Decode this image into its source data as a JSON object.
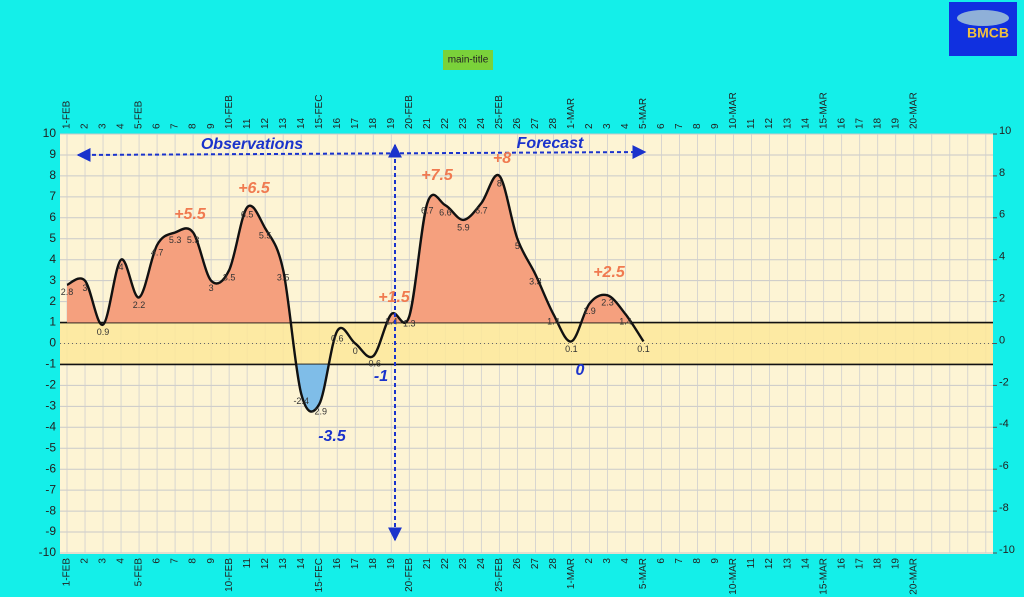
{
  "chart_data": {
    "type": "line",
    "title": "main-title",
    "logo": "BMCB",
    "categories": [
      "1-FEB",
      "2",
      "3",
      "4",
      "5-FEB",
      "6",
      "7",
      "8",
      "9",
      "10-FEB",
      "11",
      "12",
      "13",
      "14",
      "15-FEC",
      "16",
      "17",
      "18",
      "19",
      "20-FEB",
      "21",
      "22",
      "23",
      "24",
      "25-FEB",
      "26",
      "27",
      "28",
      "1-MAR",
      "2",
      "3",
      "4",
      "5-MAR",
      "6",
      "7",
      "8",
      "9",
      "10-MAR",
      "11",
      "12",
      "13",
      "14",
      "15-MAR",
      "16",
      "17",
      "18",
      "19",
      "20-MAR",
      null,
      null,
      null,
      null
    ],
    "series": [
      {
        "name": "temperature",
        "color": "#111111",
        "values": [
          2.8,
          3,
          0.9,
          4,
          2.2,
          4.7,
          5.3,
          5.3,
          3.0,
          3.5,
          6.5,
          5.5,
          3.5,
          -2.4,
          -2.9,
          0.6,
          0,
          -0.6,
          1.4,
          1.3,
          6.7,
          6.6,
          5.9,
          6.7,
          8,
          5,
          3.3,
          1.4,
          0.1,
          1.9,
          2.3,
          1.4,
          0.1,
          null,
          null,
          null,
          null,
          null,
          null,
          null,
          null,
          null,
          null,
          null,
          null,
          null,
          null,
          null,
          null,
          null,
          null,
          null
        ]
      }
    ],
    "ylim": [
      -10,
      10
    ],
    "yticks": [
      -10,
      -9,
      -8,
      -7,
      -6,
      -5,
      -4,
      -3,
      -2,
      -1,
      0,
      1,
      2,
      3,
      4,
      5,
      6,
      7,
      8,
      9,
      10
    ],
    "y2lim": [
      -10,
      10
    ],
    "y2ticks": [
      -10,
      -8,
      -6,
      -4,
      -2,
      0,
      2,
      4,
      6,
      8,
      10
    ],
    "band": [
      -1,
      1
    ],
    "above_color": "#f5a07e",
    "below_color": "#7fbde8",
    "grid": true,
    "annotations": [
      "Observations",
      "Forecast",
      "+5.5",
      "+6.5",
      "+7.5",
      "+8",
      "+2.5",
      "+1.5",
      "-3.5",
      "-1",
      "0"
    ]
  }
}
